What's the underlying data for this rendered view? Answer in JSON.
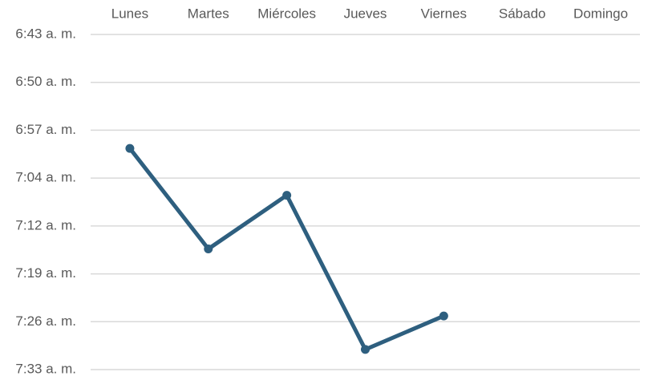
{
  "chart_data": {
    "type": "line",
    "title": "",
    "xlabel": "",
    "ylabel": "",
    "categories": [
      "Lunes",
      "Martes",
      "Miércoles",
      "Jueves",
      "Viernes",
      "Sábado",
      "Domingo"
    ],
    "y_axis": {
      "reversed": true,
      "ylim": [
        "6:43 a. m.",
        "7:33 a. m."
      ],
      "tick_labels": [
        "6:43 a. m.",
        "6:50 a. m.",
        "6:57 a. m.",
        "7:04 a. m.",
        "7:12 a. m.",
        "7:19 a. m.",
        "7:26 a. m.",
        "7:33 a. m."
      ]
    },
    "grid": true,
    "legend": "none",
    "series": [
      {
        "color": "#2e5f7f",
        "values": [
          "7:00 a. m.",
          "7:15 a. m.",
          "7:07 a. m.",
          "7:30 a. m.",
          "7:25 a. m.",
          null,
          null
        ]
      }
    ]
  }
}
